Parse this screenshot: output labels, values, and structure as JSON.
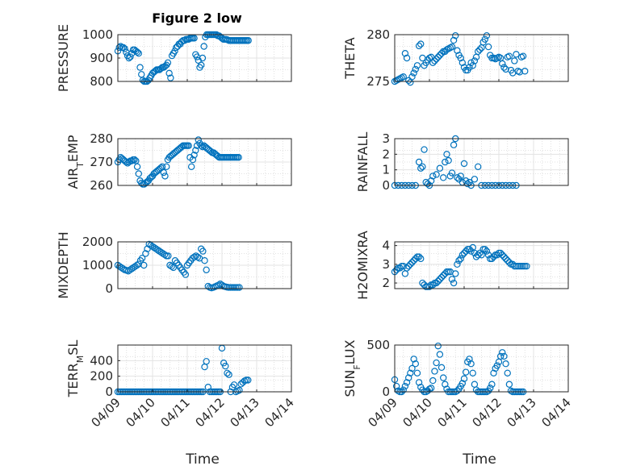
{
  "figure": {
    "title": "Figure 2 low",
    "xlabel": "Time",
    "marker_color": "#0072bd"
  },
  "chart_data": [
    {
      "type": "scatter",
      "ylabel": "PRESSURE",
      "x_ticks": [
        "04/09",
        "04/10",
        "04/11",
        "04/12",
        "04/13",
        "04/14"
      ],
      "xlim": [
        0,
        5
      ],
      "ylim": [
        800,
        1000
      ],
      "yticks": [
        800,
        900,
        1000
      ],
      "x": [
        0,
        0.04,
        0.08,
        0.12,
        0.16,
        0.2,
        0.24,
        0.28,
        0.32,
        0.36,
        0.4,
        0.44,
        0.48,
        0.52,
        0.56,
        0.6,
        0.64,
        0.68,
        0.72,
        0.76,
        0.8,
        0.84,
        0.88,
        0.92,
        0.96,
        1.0,
        1.04,
        1.08,
        1.12,
        1.16,
        1.2,
        1.24,
        1.28,
        1.32,
        1.36,
        1.4,
        1.44,
        1.48,
        1.52,
        1.56,
        1.6,
        1.64,
        1.68,
        1.72,
        1.76,
        1.8,
        1.84,
        1.88,
        1.92,
        1.96,
        2.0,
        2.04,
        2.08,
        2.12,
        2.16,
        2.2,
        2.24,
        2.28,
        2.32,
        2.36,
        2.4,
        2.44,
        2.48,
        2.52,
        2.56,
        2.6,
        2.64,
        2.68,
        2.72,
        2.76,
        2.8,
        2.84,
        2.88,
        2.92,
        2.96,
        3.0,
        3.04,
        3.08,
        3.12,
        3.16,
        3.2,
        3.24,
        3.28,
        3.32,
        3.36,
        3.4,
        3.44,
        3.48,
        3.52,
        3.56,
        3.6,
        3.64,
        3.68,
        3.72,
        3.76
      ],
      "y": [
        930,
        945,
        950,
        945,
        945,
        940,
        925,
        910,
        900,
        905,
        920,
        935,
        935,
        930,
        925,
        920,
        860,
        830,
        805,
        800,
        800,
        800,
        805,
        815,
        825,
        835,
        840,
        845,
        850,
        850,
        850,
        855,
        860,
        860,
        865,
        870,
        880,
        835,
        815,
        910,
        920,
        930,
        945,
        950,
        960,
        960,
        970,
        975,
        975,
        980,
        980,
        980,
        985,
        985,
        985,
        985,
        915,
        905,
        890,
        860,
        870,
        900,
        950,
        990,
        1000,
        1000,
        1000,
        1000,
        1000,
        1000,
        1000,
        1000,
        995,
        995,
        990,
        985,
        980,
        980,
        980,
        978,
        975,
        975,
        975,
        975,
        975,
        975,
        975,
        975,
        975,
        975,
        975,
        975,
        975,
        975,
        975
      ]
    },
    {
      "type": "scatter",
      "ylabel": "THETA",
      "x_ticks": [
        "04/09",
        "04/10",
        "04/11",
        "04/12",
        "04/13",
        "04/14"
      ],
      "xlim": [
        0,
        5
      ],
      "ylim": [
        275,
        280
      ],
      "yticks": [
        275,
        280
      ],
      "x": [
        0,
        0.05,
        0.1,
        0.15,
        0.2,
        0.25,
        0.3,
        0.35,
        0.4,
        0.45,
        0.5,
        0.55,
        0.6,
        0.65,
        0.7,
        0.75,
        0.8,
        0.85,
        0.9,
        0.95,
        1.0,
        1.05,
        1.1,
        1.15,
        1.2,
        1.25,
        1.3,
        1.35,
        1.4,
        1.45,
        1.5,
        1.55,
        1.6,
        1.65,
        1.7,
        1.75,
        1.8,
        1.85,
        1.9,
        1.95,
        2.0,
        2.05,
        2.1,
        2.15,
        2.2,
        2.25,
        2.3,
        2.35,
        2.4,
        2.45,
        2.5,
        2.55,
        2.6,
        2.65,
        2.7,
        2.75,
        2.8,
        2.85,
        2.9,
        2.95,
        3.0,
        3.05,
        3.1,
        3.15,
        3.2,
        3.25,
        3.3,
        3.35,
        3.4,
        3.45,
        3.5,
        3.55,
        3.6,
        3.65,
        3.7,
        3.75
      ],
      "y": [
        275,
        275.1,
        275.2,
        275.3,
        275.4,
        275.5,
        278,
        277.5,
        275.1,
        274.9,
        275.5,
        275.9,
        276.3,
        276.7,
        278.8,
        279,
        277.5,
        276.7,
        277,
        277.3,
        277.5,
        277.6,
        277,
        277.2,
        277.4,
        277.6,
        277.8,
        278,
        278.2,
        278.2,
        278.4,
        278.5,
        278.6,
        278.7,
        279.4,
        279.9,
        278.3,
        277.8,
        277.5,
        277,
        276.5,
        276.2,
        276.2,
        276.5,
        277,
        276.7,
        277.2,
        277.6,
        278.2,
        278.4,
        278.6,
        279.2,
        279.5,
        279.9,
        278.7,
        277.8,
        277.5,
        277.5,
        277.4,
        277.5,
        277.6,
        277.5,
        276.9,
        276.5,
        276.3,
        277.6,
        277.7,
        276.2,
        275.9,
        277.2,
        277.9,
        276.1,
        276,
        277.6,
        277.7,
        276.1
      ]
    },
    {
      "type": "scatter",
      "ylabel": "AIR_TEMP",
      "x_ticks": [
        "04/09",
        "04/10",
        "04/11",
        "04/12",
        "04/13",
        "04/14"
      ],
      "xlim": [
        0,
        5
      ],
      "ylim": [
        260,
        280
      ],
      "yticks": [
        260,
        270,
        280
      ],
      "x": [
        0,
        0.04,
        0.08,
        0.12,
        0.16,
        0.2,
        0.24,
        0.28,
        0.32,
        0.36,
        0.4,
        0.44,
        0.48,
        0.52,
        0.56,
        0.6,
        0.64,
        0.68,
        0.72,
        0.76,
        0.8,
        0.84,
        0.88,
        0.92,
        0.96,
        1.0,
        1.04,
        1.08,
        1.12,
        1.16,
        1.2,
        1.24,
        1.28,
        1.32,
        1.36,
        1.4,
        1.44,
        1.48,
        1.52,
        1.56,
        1.6,
        1.64,
        1.68,
        1.72,
        1.76,
        1.8,
        1.84,
        1.88,
        1.92,
        1.96,
        2.0,
        2.04,
        2.08,
        2.12,
        2.16,
        2.2,
        2.24,
        2.28,
        2.32,
        2.36,
        2.4,
        2.44,
        2.48,
        2.52,
        2.56,
        2.6,
        2.64,
        2.68,
        2.72,
        2.76,
        2.8,
        2.84,
        2.88,
        2.92,
        2.96,
        3.0,
        3.04,
        3.08,
        3.12,
        3.16,
        3.2,
        3.24,
        3.28,
        3.32,
        3.36,
        3.4,
        3.44,
        3.48
      ],
      "y": [
        270,
        271,
        272,
        271.5,
        271,
        270.5,
        270,
        269.5,
        270,
        270.5,
        270.5,
        271,
        271,
        270.5,
        268,
        265,
        262,
        261,
        260.5,
        260.5,
        261,
        261.5,
        262,
        263,
        263.5,
        264,
        265,
        265.5,
        266,
        266.5,
        267,
        267.5,
        268,
        265.5,
        264,
        268,
        271,
        272,
        272.5,
        273,
        273.5,
        274,
        274.5,
        275,
        275.5,
        276,
        276.5,
        277,
        277,
        277,
        277,
        277,
        272,
        268,
        271,
        273,
        275,
        277,
        279.5,
        278,
        277,
        276.5,
        277,
        276.5,
        276,
        275.5,
        275,
        274.5,
        274,
        274,
        273.5,
        273,
        272.5,
        272,
        272,
        272,
        272,
        272,
        272,
        272,
        272,
        272,
        272,
        272,
        272,
        272,
        272,
        272
      ]
    },
    {
      "type": "scatter",
      "ylabel": "RAINFALL",
      "x_ticks": [
        "04/09",
        "04/10",
        "04/11",
        "04/12",
        "04/13",
        "04/14"
      ],
      "xlim": [
        0,
        5
      ],
      "ylim": [
        0,
        3
      ],
      "yticks": [
        0,
        1,
        2,
        3
      ],
      "x": [
        0,
        0.1,
        0.2,
        0.3,
        0.4,
        0.5,
        0.6,
        0.7,
        0.75,
        0.8,
        0.85,
        0.9,
        0.95,
        1.0,
        1.05,
        1.1,
        1.2,
        1.3,
        1.4,
        1.45,
        1.5,
        1.55,
        1.6,
        1.65,
        1.7,
        1.75,
        1.8,
        1.85,
        1.9,
        1.95,
        2.0,
        2.05,
        2.1,
        2.15,
        2.2,
        2.3,
        2.4,
        2.5,
        2.6,
        2.7,
        2.8,
        2.9,
        3.0,
        3.1,
        3.2,
        3.3,
        3.4,
        3.5
      ],
      "y": [
        0,
        0,
        0,
        0,
        0,
        0,
        0,
        1.5,
        1.1,
        1.2,
        2.3,
        0.2,
        0.1,
        0,
        0.3,
        0.6,
        0.7,
        1.1,
        0.5,
        1.5,
        2,
        1.6,
        0.6,
        0.8,
        2.6,
        3,
        0.5,
        0.4,
        0.6,
        0.2,
        1.4,
        0.3,
        0.1,
        0.2,
        0,
        0.4,
        1.2,
        0,
        0,
        0,
        0,
        0,
        0,
        0,
        0,
        0,
        0,
        0
      ]
    },
    {
      "type": "scatter",
      "ylabel": "MIXDEPTH",
      "x_ticks": [
        "04/09",
        "04/10",
        "04/11",
        "04/12",
        "04/13",
        "04/14"
      ],
      "xlim": [
        0,
        5
      ],
      "ylim": [
        0,
        2000
      ],
      "yticks": [
        0,
        1000,
        2000
      ],
      "x": [
        0,
        0.05,
        0.1,
        0.15,
        0.2,
        0.25,
        0.3,
        0.35,
        0.4,
        0.45,
        0.5,
        0.55,
        0.6,
        0.65,
        0.7,
        0.75,
        0.8,
        0.85,
        0.9,
        0.95,
        1.0,
        1.05,
        1.1,
        1.15,
        1.2,
        1.25,
        1.3,
        1.35,
        1.4,
        1.45,
        1.5,
        1.55,
        1.6,
        1.65,
        1.7,
        1.75,
        1.8,
        1.85,
        1.9,
        1.95,
        2.0,
        2.05,
        2.1,
        2.15,
        2.2,
        2.25,
        2.3,
        2.35,
        2.4,
        2.45,
        2.5,
        2.55,
        2.6,
        2.65,
        2.7,
        2.75,
        2.8,
        2.85,
        2.9,
        2.95,
        3.0,
        3.05,
        3.1,
        3.15,
        3.2,
        3.25,
        3.3,
        3.35,
        3.4,
        3.45,
        3.5
      ],
      "y": [
        1000,
        950,
        900,
        850,
        800,
        780,
        750,
        800,
        850,
        900,
        950,
        1000,
        1050,
        1200,
        1300,
        1000,
        1500,
        1700,
        1900,
        1850,
        1800,
        1750,
        1700,
        1650,
        1600,
        1550,
        1500,
        1450,
        1400,
        1400,
        1000,
        950,
        900,
        1200,
        1100,
        1000,
        900,
        800,
        700,
        600,
        1000,
        1100,
        1200,
        1300,
        1350,
        1400,
        1350,
        1300,
        1700,
        1600,
        1200,
        800,
        100,
        50,
        30,
        50,
        80,
        120,
        150,
        200,
        150,
        100,
        80,
        60,
        50,
        50,
        50,
        50,
        50,
        50,
        50
      ]
    },
    {
      "type": "scatter",
      "ylabel": "H2OMIXRA",
      "x_ticks": [
        "04/09",
        "04/10",
        "04/11",
        "04/12",
        "04/13",
        "04/14"
      ],
      "xlim": [
        0,
        5
      ],
      "ylim": [
        1.7,
        4.2
      ],
      "yticks": [
        2,
        3,
        4
      ],
      "x": [
        0,
        0.05,
        0.1,
        0.15,
        0.2,
        0.25,
        0.3,
        0.35,
        0.4,
        0.45,
        0.5,
        0.55,
        0.6,
        0.65,
        0.7,
        0.75,
        0.8,
        0.85,
        0.9,
        0.95,
        1.0,
        1.05,
        1.1,
        1.15,
        1.2,
        1.25,
        1.3,
        1.35,
        1.4,
        1.45,
        1.5,
        1.55,
        1.6,
        1.65,
        1.7,
        1.75,
        1.8,
        1.85,
        1.9,
        1.95,
        2.0,
        2.05,
        2.1,
        2.15,
        2.2,
        2.25,
        2.3,
        2.35,
        2.4,
        2.45,
        2.5,
        2.55,
        2.6,
        2.65,
        2.7,
        2.75,
        2.8,
        2.85,
        2.9,
        2.95,
        3.0,
        3.05,
        3.1,
        3.15,
        3.2,
        3.25,
        3.3,
        3.35,
        3.4,
        3.45,
        3.5,
        3.55,
        3.6,
        3.65,
        3.7,
        3.75,
        3.8
      ],
      "y": [
        2.6,
        2.7,
        2.8,
        2.8,
        2.9,
        2.9,
        2.5,
        2.8,
        2.9,
        3,
        3.1,
        3.2,
        3.3,
        3.4,
        3.4,
        3.3,
        2,
        1.9,
        1.8,
        1.8,
        1.8,
        1.9,
        1.9,
        2,
        2,
        2.1,
        2.2,
        2.3,
        2.4,
        2.5,
        2.6,
        2.6,
        2.6,
        2.2,
        2,
        2.5,
        3,
        3.2,
        3.3,
        3.5,
        3.6,
        3.7,
        3.8,
        3.8,
        3.7,
        3.9,
        3.6,
        3.4,
        3.5,
        3.6,
        3.5,
        3.8,
        3.8,
        3.7,
        3.5,
        3.3,
        3.3,
        3.4,
        3.5,
        3.5,
        3.6,
        3.6,
        3.5,
        3.4,
        3.3,
        3.2,
        3.1,
        3,
        3,
        2.9,
        2.9,
        2.9,
        2.9,
        2.9,
        2.9,
        2.9,
        2.9
      ]
    },
    {
      "type": "scatter",
      "ylabel": "TERR_MSL",
      "x_ticks": [
        "04/09",
        "04/10",
        "04/11",
        "04/12",
        "04/13",
        "04/14"
      ],
      "xlim": [
        0,
        5
      ],
      "ylim": [
        0,
        600
      ],
      "yticks": [
        0,
        200,
        400
      ],
      "x": [
        0,
        0.05,
        0.1,
        0.15,
        0.2,
        0.25,
        0.3,
        0.35,
        0.4,
        0.45,
        0.5,
        0.55,
        0.6,
        0.65,
        0.7,
        0.75,
        0.8,
        0.85,
        0.9,
        0.95,
        1.0,
        1.05,
        1.1,
        1.15,
        1.2,
        1.25,
        1.3,
        1.35,
        1.4,
        1.45,
        1.5,
        1.55,
        1.6,
        1.65,
        1.7,
        1.75,
        1.8,
        1.85,
        1.9,
        1.95,
        2.0,
        2.05,
        2.1,
        2.15,
        2.2,
        2.25,
        2.3,
        2.35,
        2.4,
        2.45,
        2.5,
        2.55,
        2.6,
        2.65,
        2.7,
        2.75,
        2.8,
        2.85,
        2.9,
        2.95,
        3.0,
        3.05,
        3.1,
        3.15,
        3.2,
        3.25,
        3.3,
        3.35,
        3.4,
        3.45,
        3.5,
        3.55,
        3.6,
        3.65,
        3.7,
        3.75
      ],
      "y": [
        0,
        0,
        0,
        0,
        0,
        0,
        0,
        0,
        0,
        0,
        0,
        0,
        0,
        0,
        0,
        0,
        0,
        0,
        0,
        0,
        0,
        0,
        0,
        0,
        0,
        0,
        0,
        0,
        0,
        0,
        0,
        0,
        0,
        0,
        0,
        0,
        0,
        0,
        0,
        0,
        0,
        0,
        0,
        0,
        0,
        0,
        0,
        0,
        0,
        0,
        320,
        390,
        60,
        0,
        0,
        0,
        0,
        0,
        0,
        0,
        560,
        370,
        330,
        240,
        220,
        0,
        60,
        90,
        0,
        10,
        20,
        100,
        120,
        140,
        150,
        150
      ]
    },
    {
      "type": "scatter",
      "ylabel": "SUN_FLUX",
      "x_ticks": [
        "04/09",
        "04/10",
        "04/11",
        "04/12",
        "04/13",
        "04/14"
      ],
      "xlim": [
        0,
        5
      ],
      "ylim": [
        0,
        500
      ],
      "yticks": [
        0,
        500
      ],
      "x": [
        0,
        0.05,
        0.1,
        0.15,
        0.2,
        0.25,
        0.3,
        0.35,
        0.4,
        0.45,
        0.5,
        0.55,
        0.6,
        0.65,
        0.7,
        0.75,
        0.8,
        0.85,
        0.9,
        0.95,
        1.0,
        1.05,
        1.1,
        1.15,
        1.2,
        1.25,
        1.3,
        1.35,
        1.4,
        1.45,
        1.5,
        1.55,
        1.6,
        1.65,
        1.7,
        1.75,
        1.8,
        1.85,
        1.9,
        1.95,
        2.0,
        2.05,
        2.1,
        2.15,
        2.2,
        2.25,
        2.3,
        2.35,
        2.4,
        2.45,
        2.5,
        2.55,
        2.6,
        2.65,
        2.7,
        2.75,
        2.8,
        2.85,
        2.9,
        2.95,
        3.0,
        3.05,
        3.1,
        3.15,
        3.2,
        3.25,
        3.3,
        3.35,
        3.4,
        3.45,
        3.5,
        3.55,
        3.6,
        3.65,
        3.7
      ],
      "y": [
        130,
        60,
        10,
        0,
        0,
        20,
        60,
        100,
        150,
        200,
        250,
        350,
        300,
        200,
        100,
        50,
        20,
        0,
        0,
        10,
        30,
        40,
        120,
        220,
        310,
        490,
        400,
        260,
        150,
        80,
        30,
        0,
        0,
        0,
        0,
        0,
        10,
        30,
        60,
        90,
        140,
        210,
        320,
        350,
        300,
        200,
        80,
        20,
        0,
        0,
        0,
        0,
        0,
        0,
        10,
        40,
        80,
        200,
        250,
        280,
        320,
        380,
        420,
        380,
        300,
        200,
        80,
        10,
        0,
        0,
        0,
        0,
        0,
        0,
        0
      ]
    }
  ]
}
